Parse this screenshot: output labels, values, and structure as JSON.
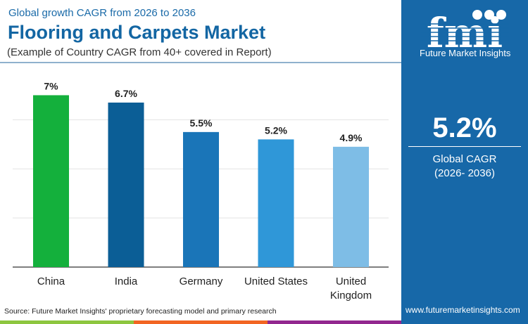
{
  "header": {
    "subtitle": "Global growth CAGR from 2026 to 2036",
    "title": "Flooring and Carpets Market",
    "note": "(Example of Country CAGR from 40+ covered in Report)"
  },
  "panel": {
    "logo_text": "fmi",
    "brand": "Future Market Insights",
    "value": "5.2%",
    "label_line1": "Global CAGR",
    "label_line2": "(2026- 2036)",
    "url": "www.futuremarketinsights.com",
    "background": "#1768a8"
  },
  "footer": {
    "source": "Source: Future Market Insights' proprietary forecasting model and primary research",
    "stripe_colors": [
      "#8dc63f",
      "#f26522",
      "#92278f"
    ]
  },
  "chart_data": {
    "type": "bar",
    "categories": [
      "China",
      "India",
      "Germany",
      "United States",
      "United Kingdom"
    ],
    "values": [
      7,
      6.7,
      5.5,
      5.2,
      4.9
    ],
    "labels": [
      "7%",
      "6.7%",
      "5.5%",
      "5.2%",
      "4.9%"
    ],
    "colors": [
      "#14b03c",
      "#0b5e96",
      "#1a75b8",
      "#2f97d8",
      "#7ebde6"
    ],
    "ylim": [
      0,
      7.5
    ],
    "grid": true,
    "unit": "%"
  }
}
